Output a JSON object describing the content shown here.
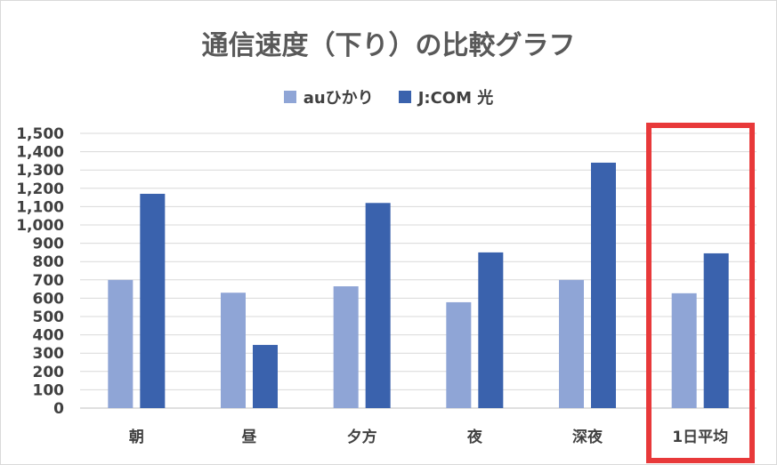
{
  "chart_data": {
    "type": "bar",
    "title": "通信速度（下り）の比較グラフ",
    "categories": [
      "朝",
      "昼",
      "夕方",
      "夜",
      "深夜",
      "1日平均"
    ],
    "series": [
      {
        "name": "auひかり",
        "values": [
          700,
          630,
          665,
          578,
          700,
          627
        ],
        "color": "#8fa5d6"
      },
      {
        "name": "J:COM 光",
        "values": [
          1170,
          345,
          1120,
          850,
          1340,
          845
        ],
        "color": "#3a62ad"
      }
    ],
    "yticks": [
      "0",
      "100",
      "200",
      "300",
      "400",
      "500",
      "600",
      "700",
      "800",
      "900",
      "1,000",
      "1,100",
      "1,200",
      "1,300",
      "1,400",
      "1,500"
    ],
    "ylim": [
      0,
      1500
    ],
    "grid": true,
    "legend_position": "top",
    "highlighted_category": "1日平均",
    "highlight_color": "#e8393a"
  }
}
